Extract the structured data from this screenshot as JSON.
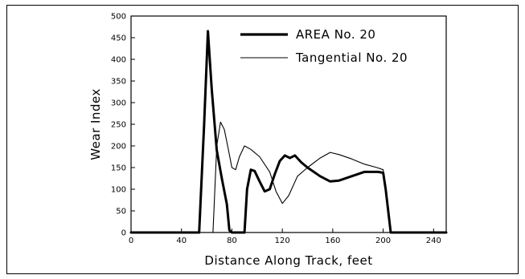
{
  "chart_data": {
    "type": "line",
    "xlabel": "Distance Along Track, feet",
    "ylabel": "Wear Index",
    "xlim": [
      0,
      250
    ],
    "ylim": [
      0,
      500
    ],
    "x_ticks": [
      "0",
      "40",
      "80",
      "120",
      "160",
      "200",
      "240"
    ],
    "y_ticks": [
      "0",
      "50",
      "100",
      "150",
      "200",
      "250",
      "300",
      "350",
      "400",
      "450",
      "500"
    ],
    "grid": false,
    "legend_position": "top-right",
    "series": [
      {
        "name": "AREA No. 20",
        "style": "thick",
        "color": "#000000",
        "x": [
          0,
          48,
          54,
          58,
          61,
          64,
          68,
          72,
          76,
          78,
          80,
          83,
          88,
          90,
          92,
          95,
          98,
          102,
          106,
          110,
          114,
          118,
          122,
          126,
          130,
          135,
          140,
          150,
          158,
          165,
          175,
          185,
          196,
          200,
          202,
          206,
          250
        ],
        "y": [
          0,
          0,
          0,
          250,
          465,
          330,
          190,
          125,
          65,
          5,
          0,
          0,
          0,
          0,
          100,
          145,
          142,
          118,
          95,
          100,
          135,
          165,
          178,
          172,
          178,
          162,
          150,
          130,
          118,
          120,
          130,
          140,
          140,
          138,
          100,
          0,
          0
        ]
      },
      {
        "name": "Tangential No. 20",
        "style": "thin",
        "color": "#000000",
        "x": [
          0,
          62,
          65,
          68,
          71,
          74,
          77,
          80,
          83,
          86,
          90,
          95,
          102,
          110,
          115,
          120,
          125,
          132,
          140,
          150,
          158,
          165,
          175,
          185,
          195,
          200,
          202,
          206,
          250
        ],
        "y": [
          0,
          0,
          0,
          200,
          255,
          238,
          195,
          150,
          145,
          175,
          200,
          192,
          175,
          140,
          95,
          67,
          85,
          130,
          150,
          172,
          185,
          180,
          170,
          158,
          150,
          145,
          100,
          0,
          0
        ]
      }
    ]
  }
}
